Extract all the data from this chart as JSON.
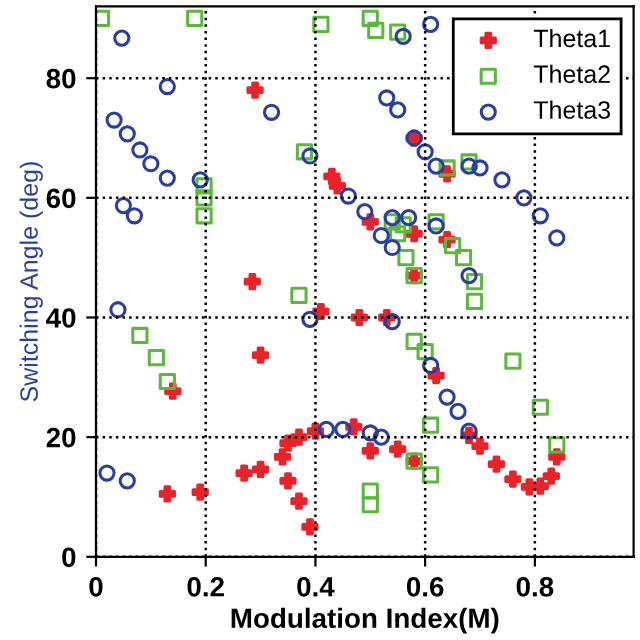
{
  "chart_data": {
    "type": "scatter",
    "xlabel": "Modulation Index(M)",
    "ylabel": "Switching Angle (deg)",
    "xlim": [
      0,
      0.98
    ],
    "ylim": [
      0,
      92
    ],
    "xticks": [
      0,
      0.2,
      0.4,
      0.6,
      0.8
    ],
    "yticks": [
      0,
      20,
      40,
      60,
      80
    ],
    "grid": true,
    "legend": "top right",
    "series": [
      {
        "name": "Theta1",
        "color": "#e8232a",
        "marker": "cross",
        "x": [
          0.29,
          0.285,
          0.43,
          0.44,
          0.5,
          0.58,
          0.58,
          0.58,
          0.64,
          0.64,
          0.41,
          0.48,
          0.53,
          0.3,
          0.14,
          0.13,
          0.19,
          0.27,
          0.3,
          0.34,
          0.35,
          0.37,
          0.4,
          0.47,
          0.5,
          0.55,
          0.58,
          0.35,
          0.37,
          0.39,
          0.62,
          0.68,
          0.7,
          0.73,
          0.76,
          0.79,
          0.81,
          0.83,
          0.84
        ],
        "values": [
          78,
          46,
          63.6,
          62,
          56,
          54,
          47,
          70,
          53,
          64,
          41,
          40,
          40,
          33.7,
          27.7,
          10.5,
          10.8,
          14,
          14.6,
          16.7,
          19,
          20,
          21,
          21.7,
          17.7,
          18,
          16,
          12.7,
          9.3,
          5,
          30.3,
          20.3,
          18.5,
          15.5,
          13,
          11.7,
          11.8,
          13.5,
          16.7
        ]
      },
      {
        "name": "Theta2",
        "color": "#5cb83c",
        "marker": "square",
        "x": [
          0.01,
          0.18,
          0.41,
          0.5,
          0.51,
          0.55,
          0.38,
          0.197,
          0.197,
          0.197,
          0.37,
          0.54,
          0.56,
          0.62,
          0.64,
          0.68,
          0.65,
          0.67,
          0.55,
          0.565,
          0.58,
          0.69,
          0.69,
          0.76,
          0.81,
          0.84,
          0.08,
          0.11,
          0.13,
          0.58,
          0.6,
          0.61,
          0.58,
          0.61,
          0.5,
          0.5
        ],
        "values": [
          90,
          90,
          89,
          90,
          88,
          87.7,
          67.7,
          62,
          60,
          57,
          43.7,
          56,
          55.5,
          56,
          65,
          66,
          52,
          50,
          54,
          50,
          47,
          46,
          42.7,
          32.7,
          25,
          18.7,
          37,
          33.3,
          29.3,
          36,
          34.3,
          22,
          16,
          13.7,
          11,
          8.7
        ]
      },
      {
        "name": "Theta3",
        "color": "#2a3e9e",
        "marker": "circle",
        "x": [
          0.047,
          0.033,
          0.057,
          0.13,
          0.08,
          0.1,
          0.13,
          0.05,
          0.07,
          0.32,
          0.19,
          0.61,
          0.56,
          0.53,
          0.55,
          0.58,
          0.6,
          0.62,
          0.39,
          0.46,
          0.49,
          0.52,
          0.54,
          0.54,
          0.57,
          0.62,
          0.68,
          0.7,
          0.74,
          0.78,
          0.81,
          0.84,
          0.68,
          0.04,
          0.02,
          0.057,
          0.39,
          0.54,
          0.61,
          0.64,
          0.66,
          0.68,
          0.42,
          0.45,
          0.5,
          0.52
        ],
        "values": [
          86.7,
          73,
          70.7,
          78.6,
          68,
          65.7,
          63.3,
          58.7,
          57,
          74.3,
          63,
          89,
          87,
          76.7,
          74.7,
          70,
          67.7,
          65.3,
          67,
          60.3,
          57.7,
          53.7,
          51.7,
          56.7,
          56.7,
          55.3,
          65.3,
          65,
          63,
          60,
          57,
          53.3,
          47,
          41.3,
          14,
          12.7,
          39.7,
          39.3,
          32,
          26.7,
          24.3,
          21,
          21.3,
          21.3,
          20.7,
          20
        ]
      }
    ]
  }
}
